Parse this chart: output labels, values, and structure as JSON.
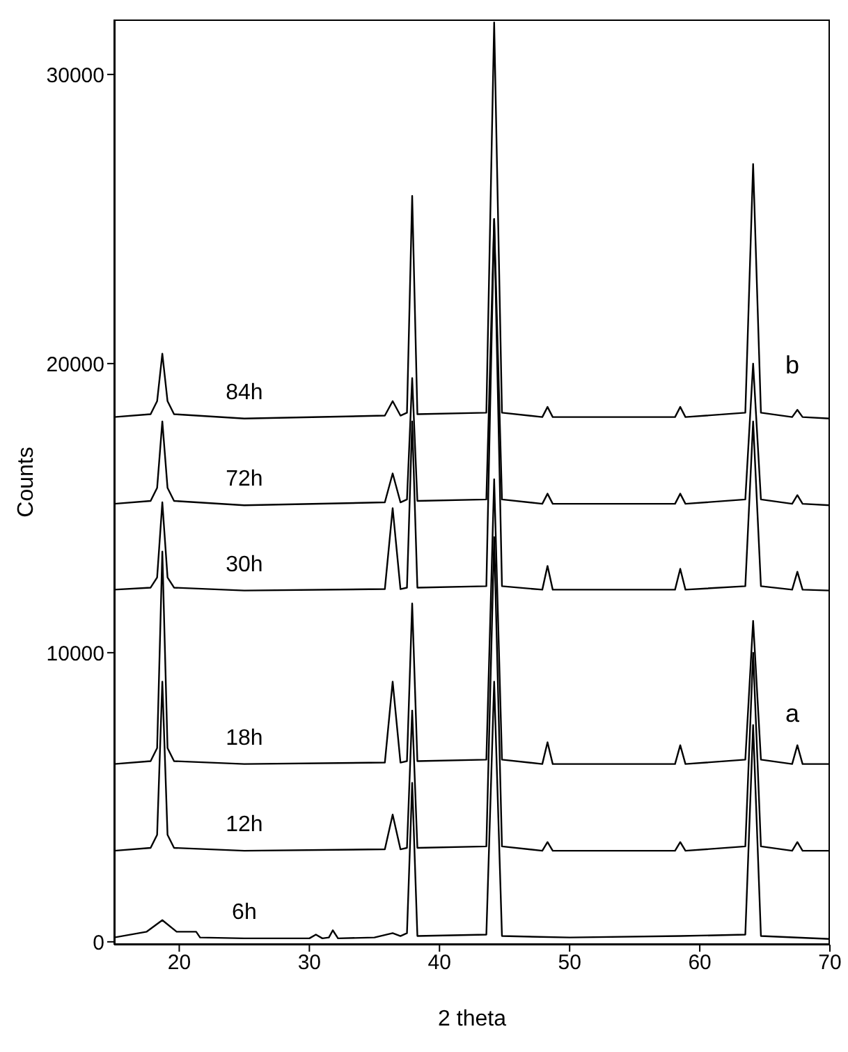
{
  "chart_data": {
    "type": "line",
    "xlabel": "2 theta",
    "ylabel": "Counts",
    "xlim": [
      15,
      70
    ],
    "xticks": [
      20,
      30,
      40,
      50,
      60,
      70
    ],
    "ylim": [
      -100,
      31900
    ],
    "yticks": [
      0,
      10000,
      20000,
      30000
    ],
    "marker": "none",
    "line_style": "solid",
    "annotations": [
      "a",
      "b"
    ],
    "series": [
      {
        "name": "84h",
        "color": "#000000",
        "x": [
          15,
          17.8,
          18.3,
          18.7,
          19.1,
          19.6,
          25,
          35.8,
          36.4,
          37.0,
          37.5,
          37.9,
          38.3,
          43.6,
          44.2,
          44.8,
          47.9,
          48.3,
          48.7,
          58.1,
          58.5,
          58.9,
          63.5,
          64.1,
          64.7,
          67.1,
          67.5,
          67.9,
          70
        ],
        "values": [
          18150,
          18250,
          18700,
          20340,
          18700,
          18250,
          18100,
          18200,
          18700,
          18200,
          18300,
          25800,
          18250,
          18300,
          31800,
          18300,
          18150,
          18500,
          18150,
          18150,
          18500,
          18150,
          18300,
          26900,
          18300,
          18150,
          18400,
          18150,
          18100
        ]
      },
      {
        "name": "72h",
        "color": "#000000",
        "x": [
          15,
          17.8,
          18.3,
          18.7,
          19.1,
          19.6,
          25,
          35.8,
          36.4,
          37.0,
          37.5,
          37.9,
          38.3,
          43.6,
          44.2,
          44.8,
          47.9,
          48.3,
          48.7,
          58.1,
          58.5,
          58.9,
          63.5,
          64.1,
          64.7,
          67.1,
          67.5,
          67.9,
          70
        ],
        "values": [
          15150,
          15250,
          15700,
          18000,
          15700,
          15250,
          15100,
          15200,
          16200,
          15200,
          15300,
          19500,
          15250,
          15300,
          25000,
          15300,
          15150,
          15500,
          15150,
          15150,
          15500,
          15150,
          15300,
          20000,
          15300,
          15150,
          15450,
          15150,
          15100
        ]
      },
      {
        "name": "30h",
        "color": "#000000",
        "x": [
          15,
          17.8,
          18.3,
          18.7,
          19.1,
          19.6,
          25,
          35.8,
          36.4,
          37.0,
          37.5,
          37.9,
          38.3,
          43.6,
          44.2,
          44.8,
          47.9,
          48.3,
          48.7,
          58.1,
          58.5,
          58.9,
          63.5,
          64.1,
          64.7,
          67.1,
          67.5,
          67.9,
          70
        ],
        "values": [
          12180,
          12250,
          12600,
          15200,
          12600,
          12250,
          12150,
          12200,
          15000,
          12200,
          12250,
          18000,
          12250,
          12300,
          25000,
          12300,
          12180,
          13000,
          12180,
          12180,
          12900,
          12180,
          12300,
          18000,
          12300,
          12180,
          12800,
          12180,
          12150
        ]
      },
      {
        "name": "18h",
        "color": "#000000",
        "x": [
          15,
          17.8,
          18.3,
          18.7,
          19.1,
          19.6,
          25,
          35.8,
          36.4,
          37.0,
          37.5,
          37.9,
          38.3,
          43.6,
          44.2,
          44.8,
          47.9,
          48.3,
          48.7,
          58.1,
          58.5,
          58.9,
          63.5,
          64.1,
          64.7,
          67.1,
          67.5,
          67.9,
          70
        ],
        "values": [
          6150,
          6250,
          6700,
          13500,
          6700,
          6250,
          6150,
          6200,
          9000,
          6200,
          6250,
          11700,
          6250,
          6300,
          16000,
          6300,
          6150,
          6900,
          6150,
          6150,
          6800,
          6150,
          6300,
          11100,
          6300,
          6150,
          6800,
          6150,
          6150
        ]
      },
      {
        "name": "12h",
        "color": "#000000",
        "x": [
          15,
          17.8,
          18.3,
          18.7,
          19.1,
          19.6,
          25,
          35.8,
          36.4,
          37.0,
          37.5,
          37.9,
          38.3,
          43.6,
          44.2,
          44.8,
          47.9,
          48.3,
          48.7,
          58.1,
          58.5,
          58.9,
          63.5,
          64.1,
          64.7,
          67.1,
          67.5,
          67.9,
          70
        ],
        "values": [
          3150,
          3250,
          3700,
          9000,
          3700,
          3250,
          3150,
          3200,
          4400,
          3200,
          3250,
          8000,
          3250,
          3300,
          14000,
          3300,
          3150,
          3450,
          3150,
          3150,
          3450,
          3150,
          3300,
          10000,
          3300,
          3150,
          3450,
          3150,
          3150
        ]
      },
      {
        "name": "6h",
        "color": "#000000",
        "x": [
          15,
          17.5,
          18.7,
          19.8,
          21.3,
          21.6,
          25,
          30.0,
          30.5,
          31.0,
          31.5,
          31.8,
          32.2,
          35,
          36.4,
          37.0,
          37.5,
          37.9,
          38.3,
          43.6,
          44.2,
          44.8,
          50,
          58.5,
          63.5,
          64.1,
          64.7,
          70
        ],
        "values": [
          150,
          350,
          750,
          350,
          350,
          150,
          120,
          120,
          250,
          120,
          150,
          400,
          120,
          150,
          300,
          200,
          300,
          5500,
          200,
          250,
          9000,
          200,
          150,
          200,
          250,
          7500,
          200,
          100
        ]
      }
    ]
  }
}
